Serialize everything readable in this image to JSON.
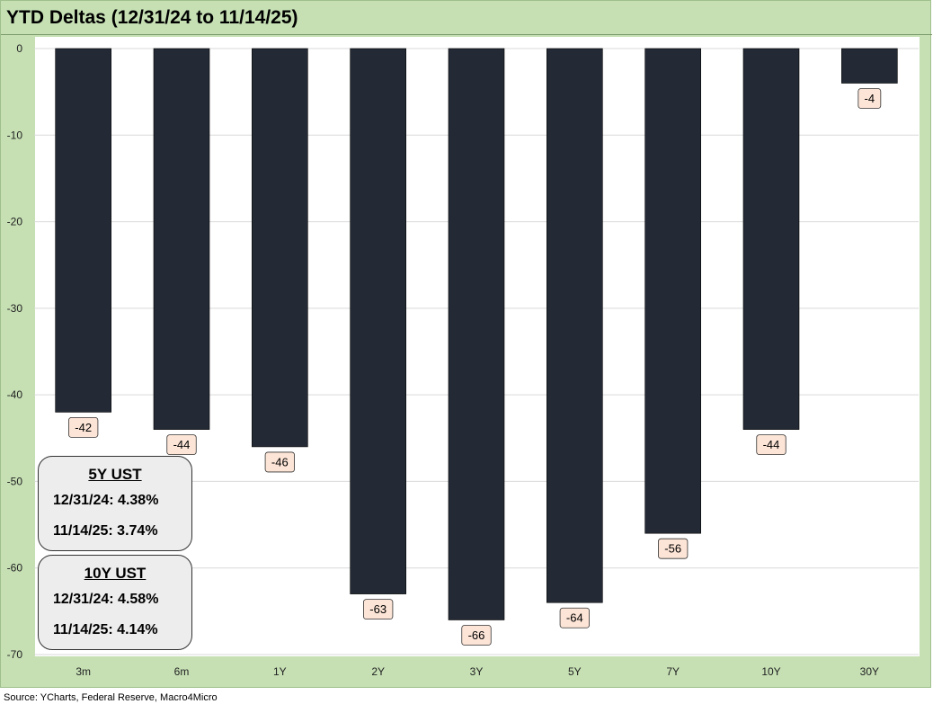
{
  "title": "YTD Deltas (12/31/24 to 11/14/25)",
  "source": "Source: YCharts, Federal Reserve, Macro4Micro",
  "colors": {
    "background": "#c6e0b4",
    "bar": "#232a35",
    "label_bg": "#fce4d6",
    "grid": "#d9d9d9"
  },
  "chart_data": {
    "type": "bar",
    "categories": [
      "3m",
      "6m",
      "1Y",
      "2Y",
      "3Y",
      "5Y",
      "7Y",
      "10Y",
      "30Y"
    ],
    "values": [
      -42,
      -44,
      -46,
      -63,
      -66,
      -64,
      -56,
      -44,
      -4
    ],
    "data_labels": [
      "-42",
      "-44",
      "-46",
      "-63",
      "-66",
      "-64",
      "-56",
      "-44",
      "-4"
    ],
    "ylim": [
      -70,
      0
    ],
    "yticks": [
      "0",
      "-10",
      "-20",
      "-30",
      "-40",
      "-50",
      "-60",
      "-70"
    ],
    "ytick_values": [
      0,
      -10,
      -20,
      -30,
      -40,
      -50,
      -60,
      -70
    ],
    "grid": true,
    "legend": "none"
  },
  "info_boxes": [
    {
      "heading": "5Y UST",
      "line1": "12/31/24:  4.38%",
      "line2": "11/14/25:  3.74%"
    },
    {
      "heading": "10Y UST",
      "line1": "12/31/24:  4.58%",
      "line2": "11/14/25:  4.14%"
    }
  ]
}
